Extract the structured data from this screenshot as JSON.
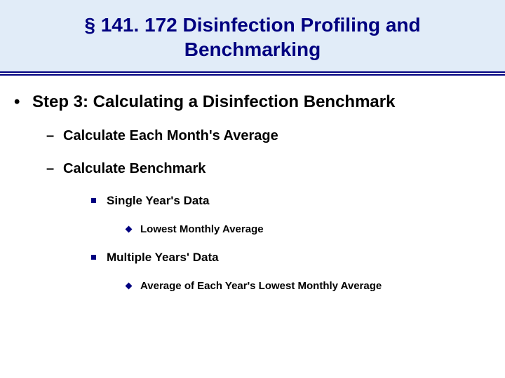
{
  "colors": {
    "title_bg": "#e1ecf8",
    "title_fg": "#000080",
    "body_fg": "#000000",
    "divider": "#000080",
    "l3_bullet": "#000080",
    "l4_bullet": "#000080",
    "page_bg": "#ffffff"
  },
  "typography": {
    "title_fontsize": 28,
    "l1_fontsize": 24,
    "l2_fontsize": 20,
    "l3_fontsize": 17,
    "l4_fontsize": 15,
    "font_family": "Arial",
    "all_bold": true
  },
  "title": "§ 141. 172 Disinfection Profiling and Benchmarking",
  "bullets": {
    "l1_symbol": "•",
    "l2_symbol": "–",
    "l3_shape": "square",
    "l4_shape": "diamond"
  },
  "content": {
    "l1": "Step 3: Calculating a Disinfection Benchmark",
    "l2a": "Calculate Each Month's Average",
    "l2b": "Calculate Benchmark",
    "l3a": "Single Year's Data",
    "l4a": "Lowest Monthly Average",
    "l3b": "Multiple Years' Data",
    "l4b": "Average of Each Year's Lowest Monthly Average"
  }
}
